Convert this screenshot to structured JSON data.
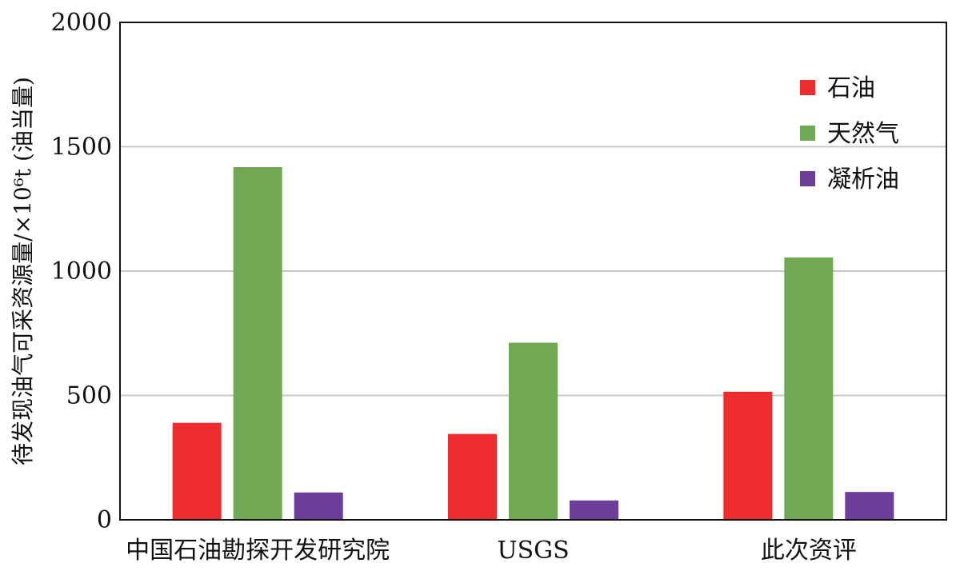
{
  "chart_data": {
    "type": "bar",
    "title": "",
    "xlabel": "",
    "ylabel": "待发现油气可采资源量/×10⁶t (油当量)",
    "ylim": [
      0,
      2000
    ],
    "yticks": [
      0,
      500,
      1000,
      1500,
      2000
    ],
    "grid": true,
    "legend_position": "top-right",
    "categories": [
      "中国石油勘探开发研究院",
      "USGS",
      "此次资评"
    ],
    "series": [
      {
        "name": "石油",
        "color": "#ed2d2d",
        "values": [
          390,
          345,
          515
        ]
      },
      {
        "name": "天然气",
        "color": "#70a854",
        "values": [
          1418,
          712,
          1055
        ]
      },
      {
        "name": "凝析油",
        "color": "#6c3e99",
        "values": [
          110,
          78,
          112
        ]
      }
    ]
  }
}
